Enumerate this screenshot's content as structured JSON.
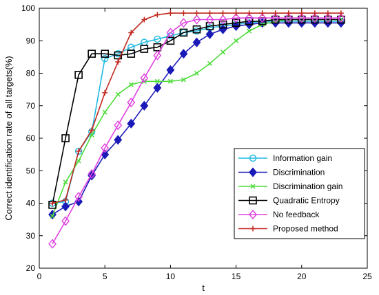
{
  "chart_data": {
    "type": "line",
    "xlabel": "t",
    "ylabel": "Correct identification rate of all targets(%)",
    "xlim": [
      0,
      25
    ],
    "ylim": [
      20,
      100
    ],
    "xticks": [
      "0",
      "5",
      "10",
      "15",
      "20",
      "25"
    ],
    "yticks": [
      "20",
      "30",
      "40",
      "50",
      "60",
      "70",
      "80",
      "90",
      "100"
    ],
    "legend_position": "bottom-right",
    "x": [
      1,
      2,
      3,
      4,
      5,
      6,
      7,
      8,
      9,
      10,
      11,
      12,
      13,
      14,
      15,
      16,
      17,
      18,
      19,
      20,
      21,
      22,
      23
    ],
    "series": [
      {
        "name": "Information gain",
        "color": "#1fb8e0",
        "marker": "circle",
        "values": [
          40,
          40.5,
          56,
          62,
          84.5,
          86,
          88,
          89.5,
          90.5,
          91.5,
          92.5,
          93,
          94,
          94.5,
          95,
          95.5,
          96,
          96,
          96,
          96,
          96,
          96,
          96
        ]
      },
      {
        "name": "Discrimination",
        "color": "#1a1ab8",
        "marker": "diamond-filled",
        "values": [
          36.5,
          39,
          40.5,
          48.5,
          55,
          59.5,
          64.5,
          70,
          75.5,
          81,
          86,
          89.5,
          92,
          93.5,
          94.5,
          95,
          95.5,
          95.5,
          95.5,
          95.5,
          95.5,
          95.5,
          95.5
        ]
      },
      {
        "name": "Discrimination gain",
        "color": "#4ddb3a",
        "marker": "x",
        "values": [
          36,
          46.5,
          53,
          61,
          68,
          73.5,
          76.5,
          77.5,
          77.5,
          77.5,
          78,
          80,
          83,
          86.5,
          90,
          93,
          95,
          96,
          96.5,
          96.5,
          96.5,
          96.5,
          96.5
        ]
      },
      {
        "name": "Quadratic Entropy",
        "color": "#000000",
        "marker": "square",
        "values": [
          39.5,
          60,
          79.5,
          86,
          86,
          85.5,
          86,
          87.5,
          88,
          90,
          92.5,
          93.5,
          94.5,
          95,
          95.5,
          96,
          96,
          96.5,
          96.5,
          96.5,
          96.5,
          96.5,
          96.5
        ]
      },
      {
        "name": "No feedback",
        "color": "#e040e0",
        "marker": "diamond",
        "values": [
          27.5,
          34.5,
          42,
          49,
          57,
          64,
          71,
          78.5,
          85.5,
          92.5,
          95.5,
          96.5,
          96.5,
          96.5,
          97,
          97,
          97,
          97,
          97,
          97,
          97,
          97,
          97
        ]
      },
      {
        "name": "Proposed method",
        "color": "#c0281e",
        "marker": "plus",
        "values": [
          40,
          41,
          56,
          62.5,
          74,
          83.5,
          92.5,
          96.5,
          98,
          98.5,
          98.5,
          98.5,
          98.5,
          98.5,
          98.5,
          98.5,
          98.5,
          98.5,
          98.5,
          98.5,
          98.5,
          98.5,
          98.5
        ]
      }
    ]
  }
}
